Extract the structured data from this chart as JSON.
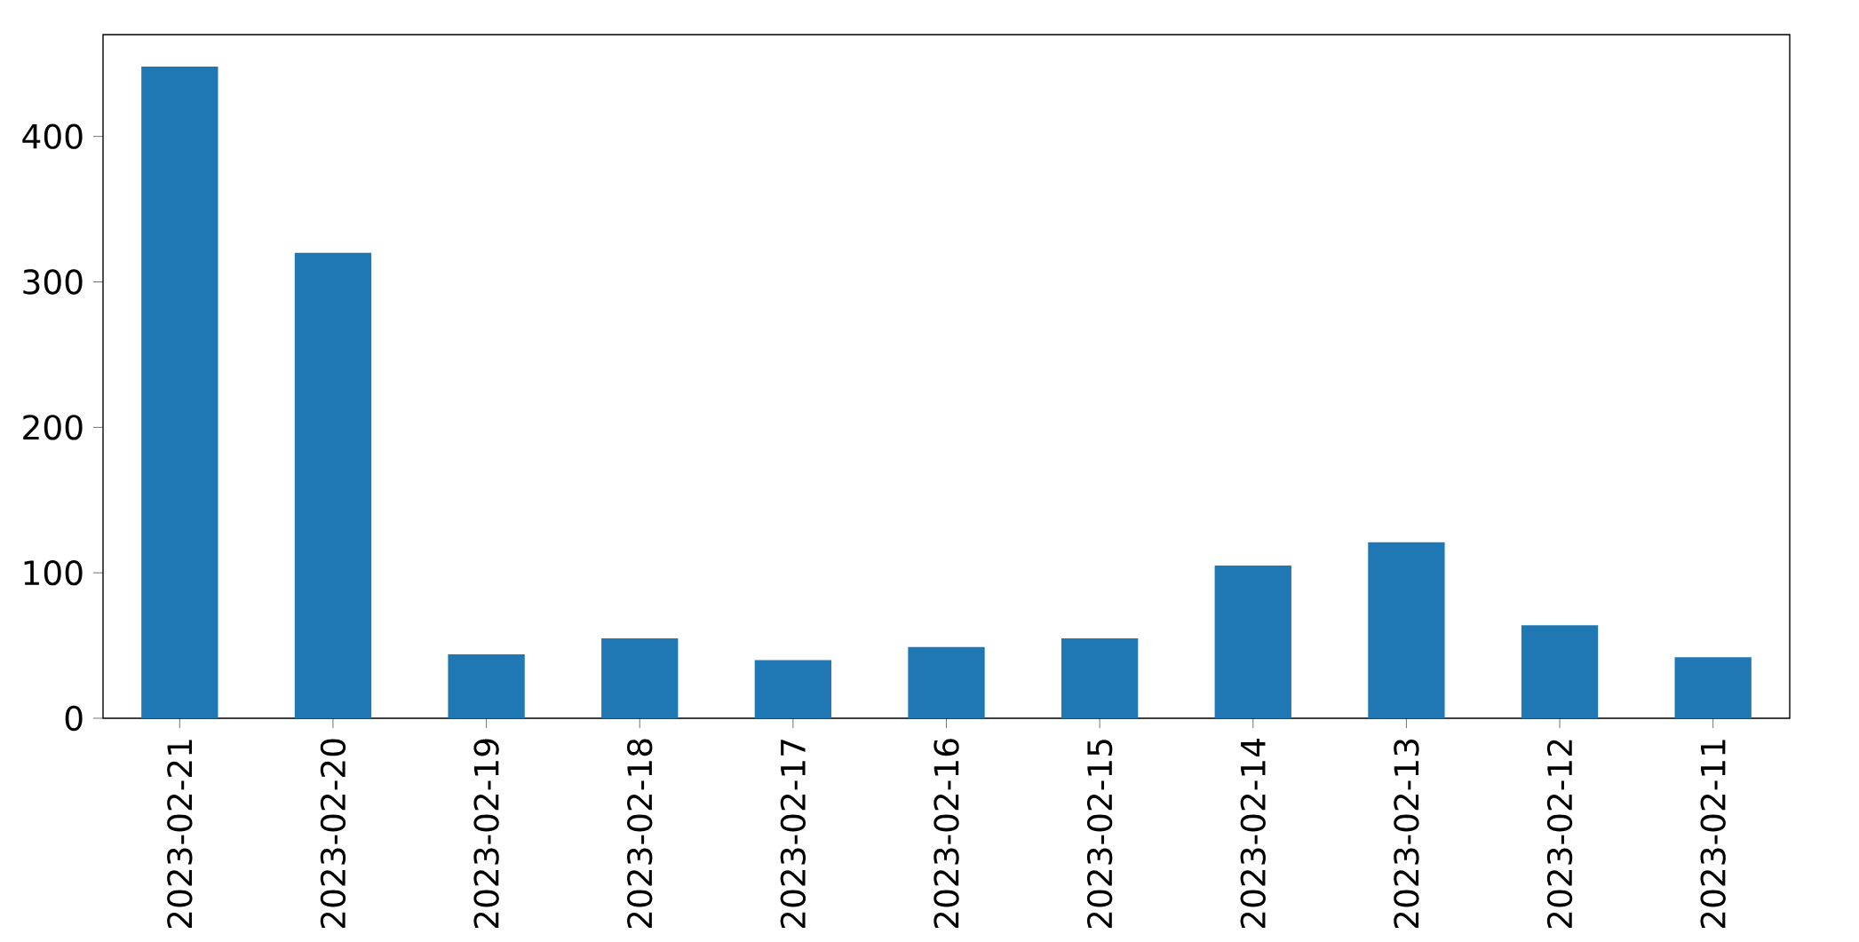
{
  "chart_data": {
    "type": "bar",
    "categories": [
      "2023-02-21",
      "2023-02-20",
      "2023-02-19",
      "2023-02-18",
      "2023-02-17",
      "2023-02-16",
      "2023-02-15",
      "2023-02-14",
      "2023-02-13",
      "2023-02-12",
      "2023-02-11"
    ],
    "values": [
      448,
      320,
      44,
      55,
      40,
      49,
      55,
      105,
      121,
      64,
      42
    ],
    "color": "#1f77b4",
    "ylim": [
      0,
      470
    ],
    "yticks": [
      0,
      100,
      200,
      300,
      400
    ]
  }
}
